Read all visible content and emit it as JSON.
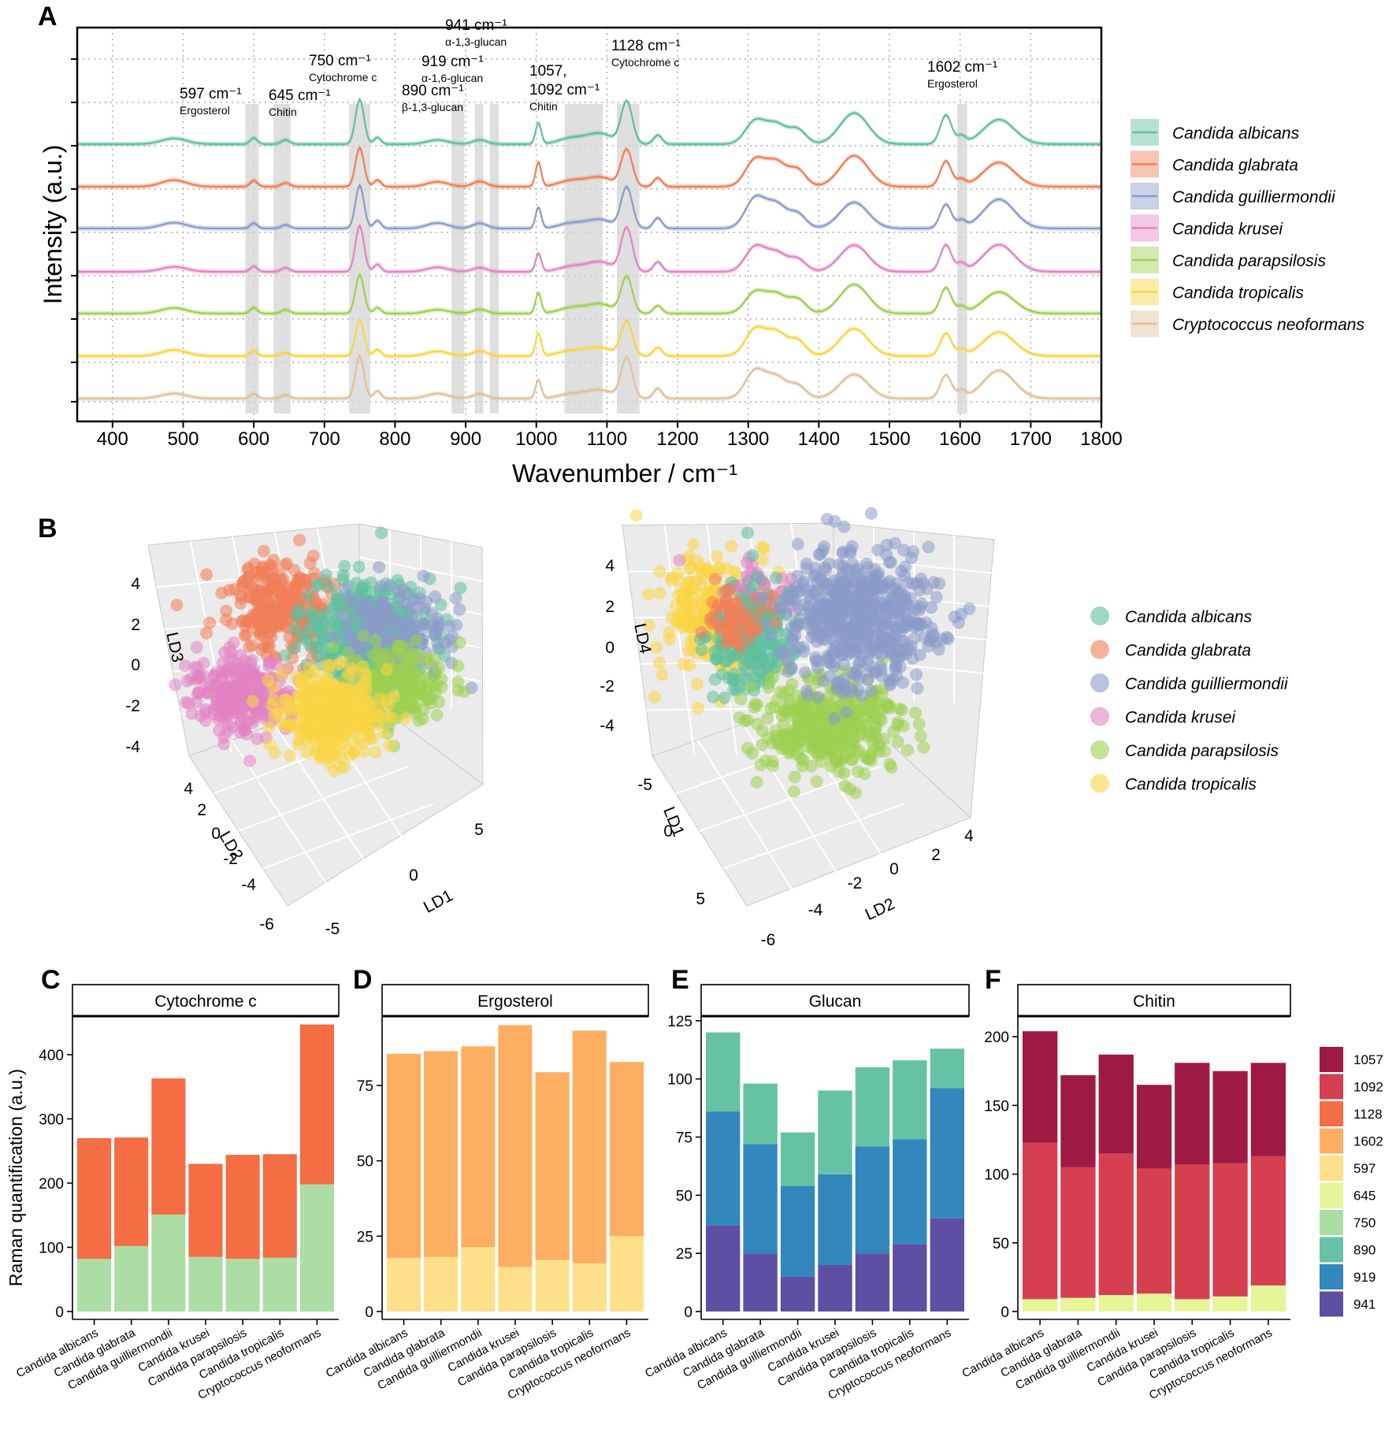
{
  "panels": {
    "A": "A",
    "B": "B",
    "C": "C",
    "D": "D",
    "E": "E",
    "F": "F"
  },
  "colors": {
    "Candida albicans": "#5fbf9e",
    "Candida glabrata": "#f07d57",
    "Candida guilliermondii": "#8a9bc9",
    "Candida krusei": "#e283c3",
    "Candida parapsilosis": "#9cd050",
    "Candida tropicalis": "#f9d543",
    "Cryptococcus neoformans": "#dfc09c"
  },
  "chart_data": [
    {
      "id": "A",
      "type": "line",
      "xlabel": "Wavenumber / cm⁻¹",
      "ylabel": "Intensity (a.u.)",
      "xlim": [
        350,
        1800
      ],
      "xticks": [
        400,
        500,
        600,
        700,
        800,
        900,
        1000,
        1100,
        1200,
        1300,
        1400,
        1500,
        1600,
        1700,
        1800
      ],
      "series": [
        {
          "name": "Candida albicans"
        },
        {
          "name": "Candida glabrata"
        },
        {
          "name": "Candida guilliermondii"
        },
        {
          "name": "Candida krusei"
        },
        {
          "name": "Candida parapsilosis"
        },
        {
          "name": "Candida tropicalis"
        },
        {
          "name": "Cryptococcus neoformans"
        }
      ],
      "peaks": [
        {
          "cm": 487,
          "h": 0.12,
          "w": 18
        },
        {
          "cm": 600,
          "h": 0.12,
          "w": 5
        },
        {
          "cm": 645,
          "h": 0.08,
          "w": 6
        },
        {
          "cm": 750,
          "h": 0.9,
          "w": 6
        },
        {
          "cm": 775,
          "h": 0.15,
          "w": 5
        },
        {
          "cm": 860,
          "h": 0.1,
          "w": 15
        },
        {
          "cm": 920,
          "h": 0.1,
          "w": 10
        },
        {
          "cm": 1003,
          "h": 0.45,
          "w": 4
        },
        {
          "cm": 1050,
          "h": 0.12,
          "w": 18
        },
        {
          "cm": 1090,
          "h": 0.2,
          "w": 18
        },
        {
          "cm": 1128,
          "h": 0.85,
          "w": 8
        },
        {
          "cm": 1172,
          "h": 0.2,
          "w": 6
        },
        {
          "cm": 1310,
          "h": 0.55,
          "w": 14
        },
        {
          "cm": 1340,
          "h": 0.45,
          "w": 14
        },
        {
          "cm": 1370,
          "h": 0.3,
          "w": 12
        },
        {
          "cm": 1450,
          "h": 0.6,
          "w": 20
        },
        {
          "cm": 1580,
          "h": 0.55,
          "w": 8
        },
        {
          "cm": 1602,
          "h": 0.15,
          "w": 6
        },
        {
          "cm": 1655,
          "h": 0.55,
          "w": 22
        }
      ],
      "bands": [
        {
          "from": 588,
          "to": 607
        },
        {
          "from": 628,
          "to": 652
        },
        {
          "from": 735,
          "to": 765
        },
        {
          "from": 880,
          "to": 898
        },
        {
          "from": 913,
          "to": 925
        },
        {
          "from": 934,
          "to": 947
        },
        {
          "from": 1040,
          "to": 1094
        },
        {
          "from": 1114,
          "to": 1146
        },
        {
          "from": 1596,
          "to": 1610
        }
      ],
      "annotations": [
        {
          "big": "597 cm⁻¹",
          "small": "Ergosterol"
        },
        {
          "big": "645 cm⁻¹",
          "small": "Chitin"
        },
        {
          "big": "750 cm⁻¹",
          "small": "Cytochrome c"
        },
        {
          "big": "890 cm⁻¹",
          "small": "β-1,3-glucan"
        },
        {
          "big": "919 cm⁻¹",
          "small": "α-1,6-glucan"
        },
        {
          "big": "941 cm⁻¹",
          "small": "α-1,3-glucan"
        },
        {
          "big": "1057,",
          "big2": "1092 cm⁻¹",
          "small": "Chitin"
        },
        {
          "big": "1128 cm⁻¹",
          "small": "Cytochrome c"
        },
        {
          "big": "1602 cm⁻¹",
          "small": "Ergosterol"
        }
      ]
    },
    {
      "id": "B1",
      "type": "scatter",
      "axes": [
        "LD1",
        "LD2",
        "LD3"
      ],
      "ticks": {
        "LD3": [
          "4",
          "2",
          "0",
          "-2",
          "-4"
        ],
        "LD2": [
          "4",
          "2",
          "0",
          "-2",
          "-4",
          "-6"
        ],
        "LD1": [
          "-5",
          "0",
          "5"
        ]
      },
      "series": [
        {
          "name": "Candida albicans"
        },
        {
          "name": "Candida glabrata"
        },
        {
          "name": "Candida guilliermondii"
        },
        {
          "name": "Candida krusei"
        },
        {
          "name": "Candida parapsilosis"
        },
        {
          "name": "Candida tropicalis"
        }
      ]
    },
    {
      "id": "B2",
      "type": "scatter",
      "axes": [
        "LD1",
        "LD2",
        "LD4"
      ],
      "ticks": {
        "LD4": [
          "4",
          "2",
          "0",
          "-2",
          "-4"
        ],
        "LD1": [
          "-5",
          "0",
          "5"
        ],
        "LD2": [
          "-6",
          "-4",
          "-2",
          "0",
          "2",
          "4"
        ]
      },
      "series": [
        {
          "name": "Candida albicans"
        },
        {
          "name": "Candida glabrata"
        },
        {
          "name": "Candida guilliermondii"
        },
        {
          "name": "Candida krusei"
        },
        {
          "name": "Candida parapsilosis"
        },
        {
          "name": "Candida tropicalis"
        }
      ]
    },
    {
      "id": "C",
      "type": "bar",
      "title": "Cytochrome c",
      "ylabel": "Raman quantification (a.u.)",
      "ylim": [
        0,
        460
      ],
      "yticks": [
        0,
        100,
        200,
        300,
        400
      ],
      "categories": [
        "Candida albicans",
        "Candida glabrata",
        "Candida guilliermondii",
        "Candida krusei",
        "Candida parapsilosis",
        "Candida tropicalis",
        "Cryptococcus neoformans"
      ],
      "series": [
        {
          "name": "750",
          "values": [
            82,
            102,
            151,
            85,
            82,
            84,
            198
          ]
        },
        {
          "name": "1128",
          "values": [
            188,
            169,
            212,
            145,
            162,
            161,
            249
          ]
        }
      ]
    },
    {
      "id": "D",
      "type": "bar",
      "title": "Ergosterol",
      "ylim": [
        0,
        98
      ],
      "yticks": [
        0,
        25,
        50,
        75
      ],
      "categories": [
        "Candida albicans",
        "Candida glabrata",
        "Candida guilliermondii",
        "Candida krusei",
        "Candida parapsilosis",
        "Candida tropicalis",
        "Cryptococcus neoformans"
      ],
      "series": [
        {
          "name": "597",
          "values": [
            17.8,
            18.1,
            21.4,
            14.8,
            17.1,
            16.0,
            25.0
          ]
        },
        {
          "name": "1602",
          "values": [
            67.7,
            68.3,
            66.6,
            80.2,
            62.3,
            77.2,
            57.8
          ]
        }
      ]
    },
    {
      "id": "E",
      "type": "bar",
      "title": "Glucan",
      "ylim": [
        0,
        127
      ],
      "yticks": [
        0,
        25,
        50,
        75,
        100,
        125
      ],
      "categories": [
        "Candida albicans",
        "Candida glabrata",
        "Candida guilliermondii",
        "Candida krusei",
        "Candida parapsilosis",
        "Candida tropicalis",
        "Cryptococcus neoformans"
      ],
      "series": [
        {
          "name": "941",
          "values": [
            37,
            25,
            15,
            20,
            25,
            29,
            40
          ]
        },
        {
          "name": "919",
          "values": [
            49,
            47,
            39,
            39,
            46,
            45,
            56
          ]
        },
        {
          "name": "890",
          "values": [
            34,
            26,
            23,
            36,
            34,
            34,
            17
          ]
        }
      ]
    },
    {
      "id": "F",
      "type": "bar",
      "title": "Chitin",
      "ylim": [
        0,
        215
      ],
      "yticks": [
        0,
        50,
        100,
        150,
        200
      ],
      "categories": [
        "Candida albicans",
        "Candida glabrata",
        "Candida guilliermondii",
        "Candida krusei",
        "Candida parapsilosis",
        "Candida tropicalis",
        "Cryptococcus neoformans"
      ],
      "series": [
        {
          "name": "645",
          "values": [
            9,
            10,
            12,
            13,
            9,
            11,
            19
          ]
        },
        {
          "name": "1092",
          "values": [
            114,
            95,
            103,
            91,
            98,
            97,
            94
          ]
        },
        {
          "name": "1057",
          "values": [
            81,
            67,
            72,
            61,
            74,
            67,
            68
          ]
        }
      ]
    }
  ],
  "legendA": [
    "Candida albicans",
    "Candida glabrata",
    "Candida guilliermondii",
    "Candida krusei",
    "Candida parapsilosis",
    "Candida tropicalis",
    "Cryptococcus neoformans"
  ],
  "legendB": [
    "Candida albicans",
    "Candida glabrata",
    "Candida guilliermondii",
    "Candida krusei",
    "Candida parapsilosis",
    "Candida tropicalis"
  ],
  "legendBars": {
    "items": [
      "1057",
      "1092",
      "1128",
      "1602",
      "597",
      "645",
      "750",
      "890",
      "919",
      "941"
    ],
    "colors": [
      "#9e1a42",
      "#d63f4f",
      "#f46d43",
      "#fdae61",
      "#fee08b",
      "#e6f598",
      "#abdda4",
      "#66c2a5",
      "#3288bd",
      "#5e4fa2"
    ]
  }
}
